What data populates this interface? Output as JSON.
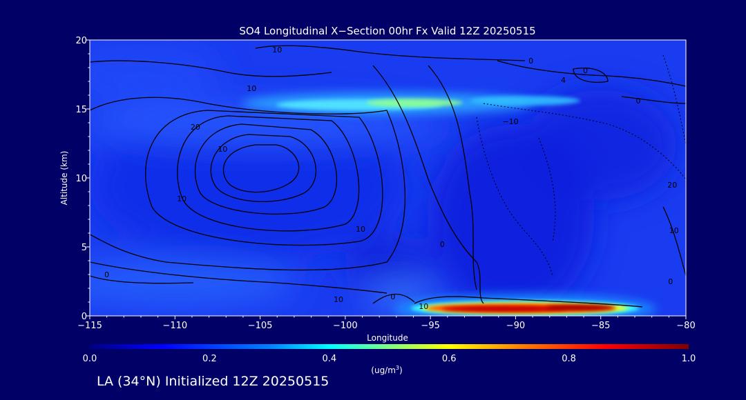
{
  "chart_data": {
    "type": "heatmap",
    "title": "SO4 Longitudinal X−Section 00hr  Fx Valid 12Z 20250515",
    "xlabel": "Longitude",
    "ylabel": "Altitude (km)",
    "xlim": [
      -115,
      -80
    ],
    "ylim": [
      0,
      20
    ],
    "x_ticks": [
      -115,
      -110,
      -105,
      -100,
      -95,
      -90,
      -85,
      -80
    ],
    "x_tick_labels": [
      "−115",
      "−110",
      "−105",
      "−100",
      "−95",
      "−90",
      "−85",
      "−80"
    ],
    "y_ticks": [
      0,
      5,
      10,
      15,
      20
    ],
    "y_tick_labels": [
      "0",
      "5",
      "10",
      "15",
      "20"
    ],
    "colorbar": {
      "min": 0.0,
      "max": 1.0,
      "ticks": [
        0.0,
        0.2,
        0.4,
        0.6,
        0.8,
        1.0
      ],
      "tick_labels": [
        "0.0",
        "0.2",
        "0.4",
        "0.6",
        "0.8",
        "1.0"
      ],
      "units_label_main": "(ug/m",
      "units_label_sup": "3",
      "units_label_end": ")",
      "colors": [
        "#000080",
        "#0000ff",
        "#0080ff",
        "#00ffff",
        "#80ff80",
        "#ffff00",
        "#ff8000",
        "#ff0000",
        "#800000"
      ]
    },
    "features": [
      {
        "lon": -97.0,
        "alt": 15.3,
        "value": 0.42
      },
      {
        "lon": -88.0,
        "alt": 15.5,
        "value": 0.3
      },
      {
        "lon": -90.5,
        "alt": 0.3,
        "value": 1.0
      },
      {
        "lon": -85.0,
        "alt": 0.5,
        "value": 0.95
      }
    ],
    "contour_labels": [
      {
        "lon": -114.0,
        "alt": 3.0,
        "text": "0"
      },
      {
        "lon": -108.8,
        "alt": 13.7,
        "text": "20"
      },
      {
        "lon": -107.2,
        "alt": 12.1,
        "text": "10"
      },
      {
        "lon": -105.5,
        "alt": 16.5,
        "text": "10"
      },
      {
        "lon": -104.0,
        "alt": 19.3,
        "text": "10"
      },
      {
        "lon": -109.6,
        "alt": 8.5,
        "text": "10"
      },
      {
        "lon": -99.1,
        "alt": 6.3,
        "text": "10"
      },
      {
        "lon": -100.4,
        "alt": 1.2,
        "text": "10"
      },
      {
        "lon": -97.2,
        "alt": 1.4,
        "text": "0"
      },
      {
        "lon": -95.4,
        "alt": 0.7,
        "text": "10"
      },
      {
        "lon": -94.3,
        "alt": 5.2,
        "text": "0"
      },
      {
        "lon": -90.3,
        "alt": 14.1,
        "text": "−10"
      },
      {
        "lon": -89.1,
        "alt": 18.5,
        "text": "0"
      },
      {
        "lon": -87.2,
        "alt": 17.1,
        "text": "4"
      },
      {
        "lon": -85.9,
        "alt": 17.8,
        "text": "0"
      },
      {
        "lon": -82.8,
        "alt": 15.6,
        "text": "0"
      },
      {
        "lon": -80.8,
        "alt": 9.5,
        "text": "20"
      },
      {
        "lon": -80.7,
        "alt": 6.2,
        "text": "10"
      },
      {
        "lon": -80.9,
        "alt": 2.5,
        "text": "0"
      }
    ],
    "grid": false,
    "legend": "colorbar bottom"
  },
  "caption": "LA (34°N) Initialized 12Z 20250515"
}
